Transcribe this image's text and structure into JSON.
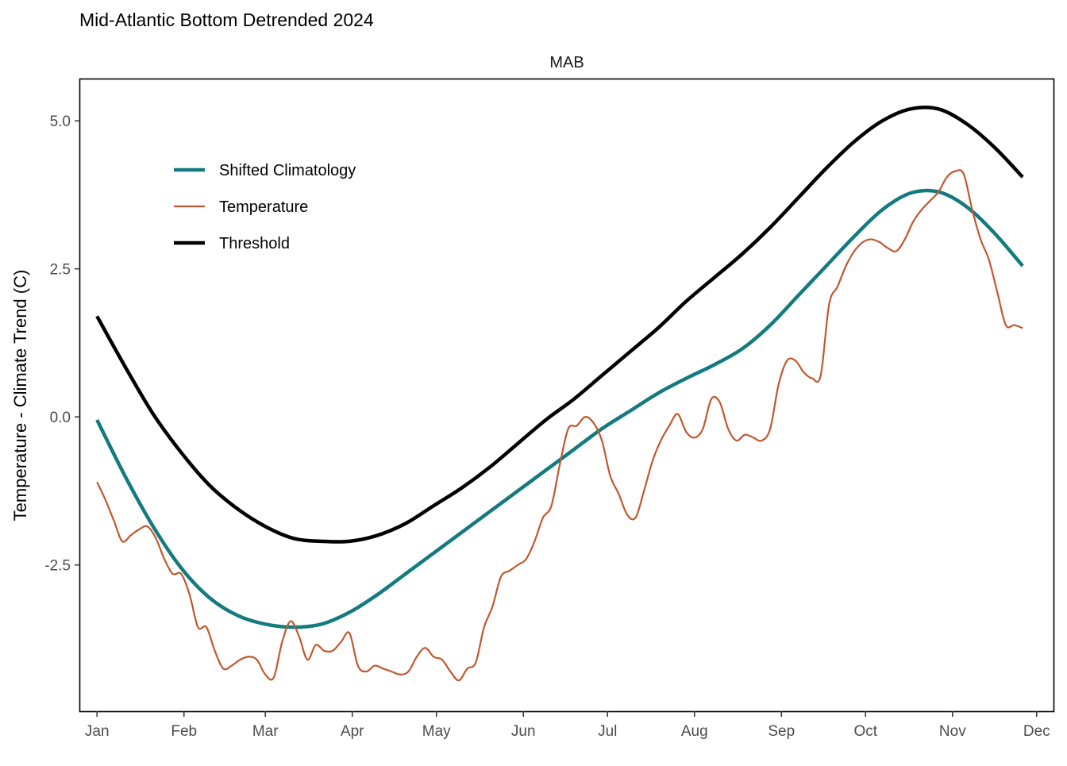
{
  "chart_data": {
    "type": "line",
    "title": "Mid-Atlantic Bottom Detrended 2024",
    "panel_label": "MAB",
    "xlabel": "",
    "ylabel": "Temperature - Climate Trend (C)",
    "ylim": [
      -4.97,
      5.7
    ],
    "yticks": [
      -2.5,
      0.0,
      2.5,
      5.0
    ],
    "ytick_labels": [
      "-2.5",
      "0.0",
      "2.5",
      "5.0"
    ],
    "xlim": [
      "2023-12-26",
      "2024-12-07"
    ],
    "xticks": [
      "2024-01-01",
      "2024-02-01",
      "2024-03-01",
      "2024-04-01",
      "2024-05-01",
      "2024-06-01",
      "2024-07-01",
      "2024-08-01",
      "2024-09-01",
      "2024-10-01",
      "2024-11-01",
      "2024-12-01"
    ],
    "xtick_labels": [
      "Jan",
      "Feb",
      "Mar",
      "Apr",
      "May",
      "Jun",
      "Jul",
      "Aug",
      "Sep",
      "Oct",
      "Nov",
      "Dec"
    ],
    "grid": false,
    "legend_position": "top-left",
    "series": [
      {
        "name": "Shifted Climatology",
        "color": "#137A7F",
        "x": [
          "2024-01-01",
          "2024-01-11",
          "2024-01-21",
          "2024-01-31",
          "2024-02-10",
          "2024-02-20",
          "2024-03-01",
          "2024-03-11",
          "2024-03-21",
          "2024-03-31",
          "2024-04-10",
          "2024-04-20",
          "2024-04-30",
          "2024-05-10",
          "2024-05-20",
          "2024-05-30",
          "2024-06-09",
          "2024-06-19",
          "2024-06-29",
          "2024-07-09",
          "2024-07-19",
          "2024-07-29",
          "2024-08-08",
          "2024-08-18",
          "2024-08-28",
          "2024-09-07",
          "2024-09-17",
          "2024-09-27",
          "2024-10-07",
          "2024-10-17",
          "2024-10-27",
          "2024-11-06",
          "2024-11-16",
          "2024-11-26"
        ],
        "y": [
          -0.05,
          -1.0,
          -1.85,
          -2.55,
          -3.05,
          -3.35,
          -3.5,
          -3.55,
          -3.5,
          -3.3,
          -3.0,
          -2.65,
          -2.3,
          -1.95,
          -1.6,
          -1.25,
          -0.9,
          -0.55,
          -0.2,
          0.1,
          0.4,
          0.65,
          0.88,
          1.15,
          1.55,
          2.05,
          2.55,
          3.05,
          3.5,
          3.78,
          3.8,
          3.55,
          3.1,
          2.55
        ]
      },
      {
        "name": "Temperature",
        "color": "#C0582F",
        "x": [
          "2024-01-01",
          "2024-01-04",
          "2024-01-07",
          "2024-01-10",
          "2024-01-13",
          "2024-01-16",
          "2024-01-19",
          "2024-01-22",
          "2024-01-25",
          "2024-01-28",
          "2024-01-31",
          "2024-02-03",
          "2024-02-06",
          "2024-02-09",
          "2024-02-12",
          "2024-02-15",
          "2024-02-18",
          "2024-02-21",
          "2024-02-24",
          "2024-02-27",
          "2024-03-01",
          "2024-03-04",
          "2024-03-07",
          "2024-03-10",
          "2024-03-13",
          "2024-03-16",
          "2024-03-19",
          "2024-03-22",
          "2024-03-25",
          "2024-03-28",
          "2024-03-31",
          "2024-04-03",
          "2024-04-06",
          "2024-04-09",
          "2024-04-12",
          "2024-04-15",
          "2024-04-18",
          "2024-04-21",
          "2024-04-24",
          "2024-04-27",
          "2024-04-30",
          "2024-05-03",
          "2024-05-06",
          "2024-05-09",
          "2024-05-12",
          "2024-05-15",
          "2024-05-18",
          "2024-05-21",
          "2024-05-24",
          "2024-05-27",
          "2024-05-30",
          "2024-06-02",
          "2024-06-05",
          "2024-06-08",
          "2024-06-11",
          "2024-06-14",
          "2024-06-17",
          "2024-06-20",
          "2024-06-23",
          "2024-06-26",
          "2024-06-29",
          "2024-07-02",
          "2024-07-05",
          "2024-07-08",
          "2024-07-11",
          "2024-07-14",
          "2024-07-17",
          "2024-07-20",
          "2024-07-23",
          "2024-07-26",
          "2024-07-29",
          "2024-08-01",
          "2024-08-04",
          "2024-08-07",
          "2024-08-10",
          "2024-08-13",
          "2024-08-16",
          "2024-08-19",
          "2024-08-22",
          "2024-08-25",
          "2024-08-28",
          "2024-08-31",
          "2024-09-03",
          "2024-09-06",
          "2024-09-09",
          "2024-09-12",
          "2024-09-15",
          "2024-09-18",
          "2024-09-21",
          "2024-09-24",
          "2024-09-27",
          "2024-09-30",
          "2024-10-03",
          "2024-10-06",
          "2024-10-09",
          "2024-10-12",
          "2024-10-15",
          "2024-10-18",
          "2024-10-21",
          "2024-10-24",
          "2024-10-27",
          "2024-10-30",
          "2024-11-02",
          "2024-11-05",
          "2024-11-08",
          "2024-11-11",
          "2024-11-14",
          "2024-11-17",
          "2024-11-20",
          "2024-11-23",
          "2024-11-26"
        ],
        "y": [
          -1.1,
          -1.4,
          -1.75,
          -2.1,
          -2.0,
          -1.9,
          -1.85,
          -2.05,
          -2.4,
          -2.65,
          -2.65,
          -3.0,
          -3.55,
          -3.55,
          -3.95,
          -4.25,
          -4.2,
          -4.1,
          -4.05,
          -4.1,
          -4.35,
          -4.4,
          -3.8,
          -3.45,
          -3.7,
          -4.1,
          -3.85,
          -3.95,
          -3.95,
          -3.8,
          -3.65,
          -4.2,
          -4.3,
          -4.2,
          -4.25,
          -4.3,
          -4.35,
          -4.3,
          -4.05,
          -3.9,
          -4.05,
          -4.1,
          -4.3,
          -4.45,
          -4.25,
          -4.15,
          -3.55,
          -3.2,
          -2.7,
          -2.6,
          -2.5,
          -2.4,
          -2.1,
          -1.7,
          -1.5,
          -0.8,
          -0.2,
          -0.15,
          0.0,
          -0.1,
          -0.4,
          -1.0,
          -1.3,
          -1.65,
          -1.7,
          -1.25,
          -0.75,
          -0.4,
          -0.15,
          0.05,
          -0.25,
          -0.35,
          -0.2,
          0.3,
          0.25,
          -0.2,
          -0.4,
          -0.3,
          -0.35,
          -0.4,
          -0.2,
          0.55,
          0.95,
          0.95,
          0.75,
          0.65,
          0.7,
          1.9,
          2.2,
          2.55,
          2.8,
          2.95,
          3.0,
          2.95,
          2.85,
          2.8,
          3.0,
          3.3,
          3.5,
          3.65,
          3.8,
          4.05,
          4.15,
          4.1,
          3.5,
          3.0,
          2.65,
          2.1,
          1.55,
          1.55,
          1.5
        ]
      },
      {
        "name": "Threshold",
        "color": "#000000",
        "x": [
          "2024-01-01",
          "2024-01-11",
          "2024-01-21",
          "2024-01-31",
          "2024-02-10",
          "2024-02-20",
          "2024-03-01",
          "2024-03-11",
          "2024-03-21",
          "2024-03-31",
          "2024-04-10",
          "2024-04-20",
          "2024-04-30",
          "2024-05-10",
          "2024-05-20",
          "2024-05-30",
          "2024-06-09",
          "2024-06-19",
          "2024-06-29",
          "2024-07-09",
          "2024-07-19",
          "2024-07-29",
          "2024-08-08",
          "2024-08-18",
          "2024-08-28",
          "2024-09-07",
          "2024-09-17",
          "2024-09-27",
          "2024-10-07",
          "2024-10-17",
          "2024-10-27",
          "2024-11-06",
          "2024-11-16",
          "2024-11-26"
        ],
        "y": [
          1.7,
          0.85,
          0.05,
          -0.6,
          -1.15,
          -1.55,
          -1.85,
          -2.05,
          -2.1,
          -2.1,
          -2.0,
          -1.8,
          -1.5,
          -1.2,
          -0.85,
          -0.45,
          -0.05,
          0.3,
          0.7,
          1.1,
          1.5,
          1.95,
          2.35,
          2.75,
          3.2,
          3.7,
          4.2,
          4.65,
          5.0,
          5.2,
          5.2,
          4.95,
          4.55,
          4.05
        ]
      }
    ]
  }
}
